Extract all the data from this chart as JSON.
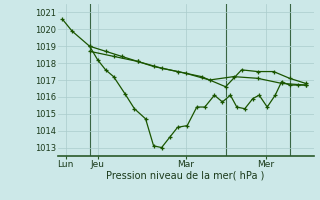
{
  "background_color": "#cce8e8",
  "grid_color": "#aacccc",
  "line_color": "#1a5500",
  "title": "Pression niveau de la mer( hPa )",
  "ylim": [
    1012.5,
    1021.5
  ],
  "xlim": [
    0,
    16.0
  ],
  "ytick_vals": [
    1013,
    1014,
    1015,
    1016,
    1017,
    1018,
    1019,
    1020,
    1021
  ],
  "xtick_pos": [
    0.5,
    2.5,
    8.0,
    13.0
  ],
  "xtick_labels": [
    "Lun",
    "Jeu",
    "Mar",
    "Mer"
  ],
  "vlines": [
    2.0,
    10.5,
    14.5
  ],
  "line1_x": [
    0.3,
    0.9,
    2.0,
    2.5,
    3.0,
    3.5,
    4.2,
    4.8,
    5.5,
    6.0,
    6.5,
    7.0,
    7.5,
    8.1,
    8.7,
    9.2,
    9.8,
    10.3,
    10.8,
    11.2,
    11.7,
    12.2,
    12.6,
    13.1,
    13.6,
    14.0,
    14.5,
    15.0,
    15.5
  ],
  "line1_y": [
    1020.6,
    1019.9,
    1019.0,
    1018.2,
    1017.6,
    1017.2,
    1016.2,
    1015.3,
    1014.7,
    1013.1,
    1013.0,
    1013.6,
    1014.2,
    1014.3,
    1015.4,
    1015.4,
    1016.1,
    1015.7,
    1016.1,
    1015.4,
    1015.3,
    1015.9,
    1016.1,
    1015.4,
    1016.1,
    1016.9,
    1016.7,
    1016.7,
    1016.7
  ],
  "line2_x": [
    2.0,
    3.0,
    4.0,
    5.0,
    6.0,
    7.5,
    9.0,
    10.5,
    11.5,
    12.5,
    13.5,
    14.5,
    15.5
  ],
  "line2_y": [
    1019.0,
    1018.7,
    1018.4,
    1018.1,
    1017.8,
    1017.5,
    1017.2,
    1016.6,
    1017.6,
    1017.5,
    1017.5,
    1017.1,
    1016.8
  ],
  "line3_x": [
    2.0,
    3.5,
    5.0,
    6.5,
    8.0,
    9.5,
    11.0,
    12.5,
    14.0,
    15.5
  ],
  "line3_y": [
    1018.7,
    1018.4,
    1018.1,
    1017.7,
    1017.4,
    1017.0,
    1017.2,
    1017.1,
    1016.8,
    1016.7
  ]
}
